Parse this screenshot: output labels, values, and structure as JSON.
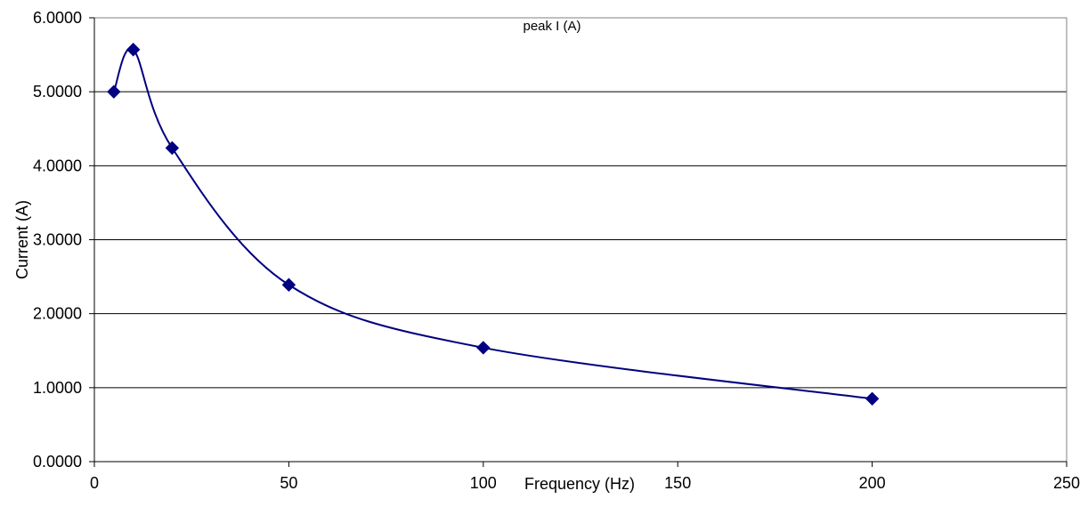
{
  "chart_data": {
    "type": "scatter",
    "title": "peak I (A)",
    "xlabel": "Frequency (Hz)",
    "ylabel": "Current (A)",
    "xlim": [
      0,
      250
    ],
    "ylim": [
      0,
      6
    ],
    "x_ticks": [
      0,
      50,
      100,
      150,
      200,
      250
    ],
    "y_ticks": [
      0,
      1,
      2,
      3,
      4,
      5,
      6
    ],
    "x_tick_labels": [
      "0",
      "50",
      "100",
      "150",
      "200",
      "250"
    ],
    "y_tick_labels": [
      "0.0000",
      "1.0000",
      "2.0000",
      "3.0000",
      "4.0000",
      "5.0000",
      "6.0000"
    ],
    "grid": "horizontal",
    "legend": "none",
    "smoothed": true,
    "colors": {
      "series": "#000080",
      "grid": "#000000",
      "border": "#808080"
    },
    "series": [
      {
        "x": [
          5,
          10,
          20,
          50,
          100,
          200
        ],
        "y": [
          5.0,
          5.57,
          4.24,
          2.39,
          1.54,
          0.85
        ],
        "marker": "diamond"
      }
    ]
  }
}
